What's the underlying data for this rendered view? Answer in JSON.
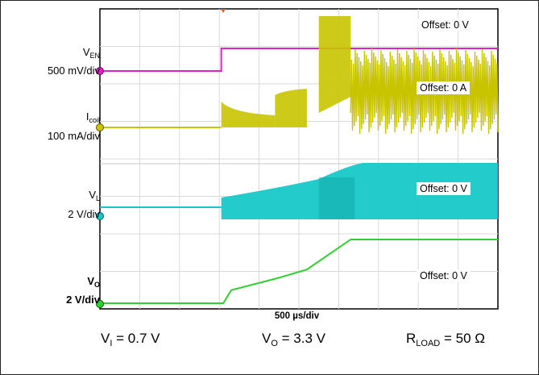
{
  "chart_data": {
    "type": "line",
    "timebase": "500 µs/div",
    "time_divisions": 10,
    "channels": [
      {
        "name": "V",
        "sub": "EN",
        "scale": "500 mV/div",
        "offset_label": "Offset: 0 V",
        "color": "#e020c8"
      },
      {
        "name": "I",
        "sub": "coil",
        "scale": "100 mA/div",
        "offset_label": "Offset: 0 A",
        "color": "#c8c400"
      },
      {
        "name": "V",
        "sub": "L",
        "scale": "2 V/div",
        "offset_label": "Offset: 0 V",
        "color": "#18c8c8"
      },
      {
        "name": "V",
        "sub": "O",
        "scale": "2 V/div",
        "offset_label": "Offset: 0 V",
        "color": "#30d030"
      }
    ],
    "vo_trace_divisions": {
      "t_div": [
        0,
        3.1,
        3.3,
        4.4,
        5.2,
        6.3,
        10
      ],
      "v_div": [
        0,
        0,
        0.35,
        0.65,
        0.9,
        1.7,
        1.7
      ]
    }
  },
  "conditions": {
    "vi": {
      "main": "V",
      "sub": "I",
      "rest": " = 0.7 V"
    },
    "vo": {
      "main": "V",
      "sub": "O",
      "rest": " = 3.3 V"
    },
    "rload": {
      "main": "R",
      "sub": "LOAD",
      "rest": " = 50 Ω"
    }
  }
}
